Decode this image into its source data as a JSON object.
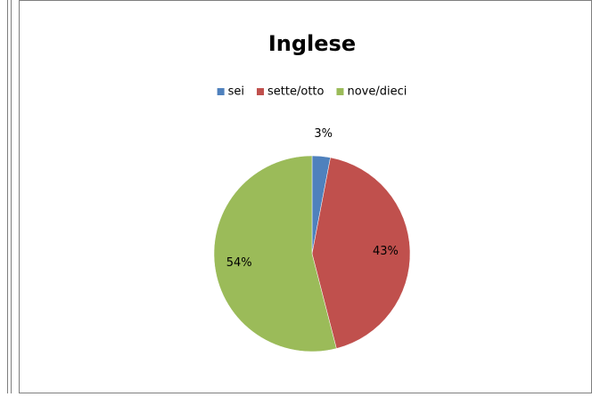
{
  "chart_data": {
    "type": "pie",
    "title": "Inglese",
    "categories": [
      "sei",
      "sette/otto",
      "nove/dieci"
    ],
    "values": [
      3,
      43,
      54
    ],
    "value_labels": [
      "3%",
      "43%",
      "54%"
    ],
    "colors": [
      "#4f81bd",
      "#c0504d",
      "#9bbb59"
    ],
    "legend": "top"
  }
}
